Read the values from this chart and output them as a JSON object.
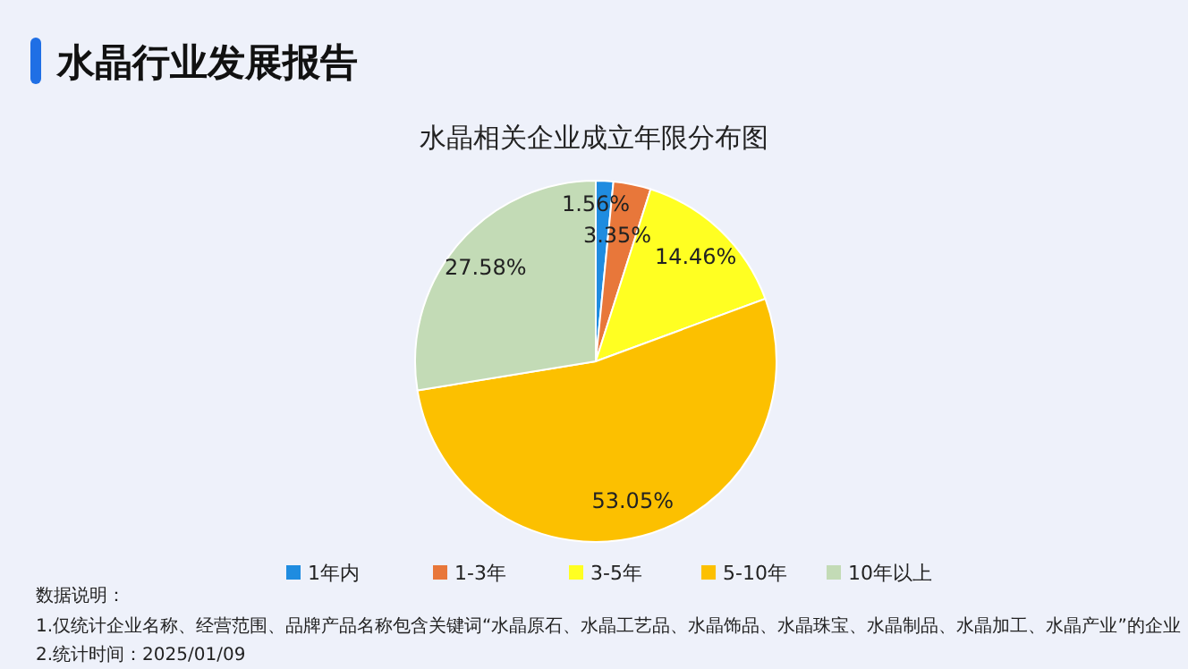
{
  "chart_data": {
    "type": "pie",
    "title": "水晶行业发展报告",
    "subtitle": "水晶相关企业成立年限分布图",
    "categories": [
      "1年内",
      "1-3年",
      "3-5年",
      "5-10年",
      "10年以上"
    ],
    "values": [
      1.56,
      3.35,
      14.46,
      53.05,
      27.58
    ],
    "value_labels": [
      "1.56%",
      "3.35%",
      "14.46%",
      "53.05%",
      "27.58%"
    ],
    "colors": [
      "#1f8ce0",
      "#e8773a",
      "#ffff22",
      "#fcc000",
      "#c3dbb6"
    ],
    "legend": "bottom",
    "annotations": [
      "数据说明：",
      "1.仅统计企业名称、经营范围、品牌产品名称包含关键词“水晶原石、水晶工艺品、水晶饰品、水晶珠宝、水晶制品、水晶加工、水晶产业”的企业",
      "2.统计时间：2025/01/09"
    ]
  }
}
